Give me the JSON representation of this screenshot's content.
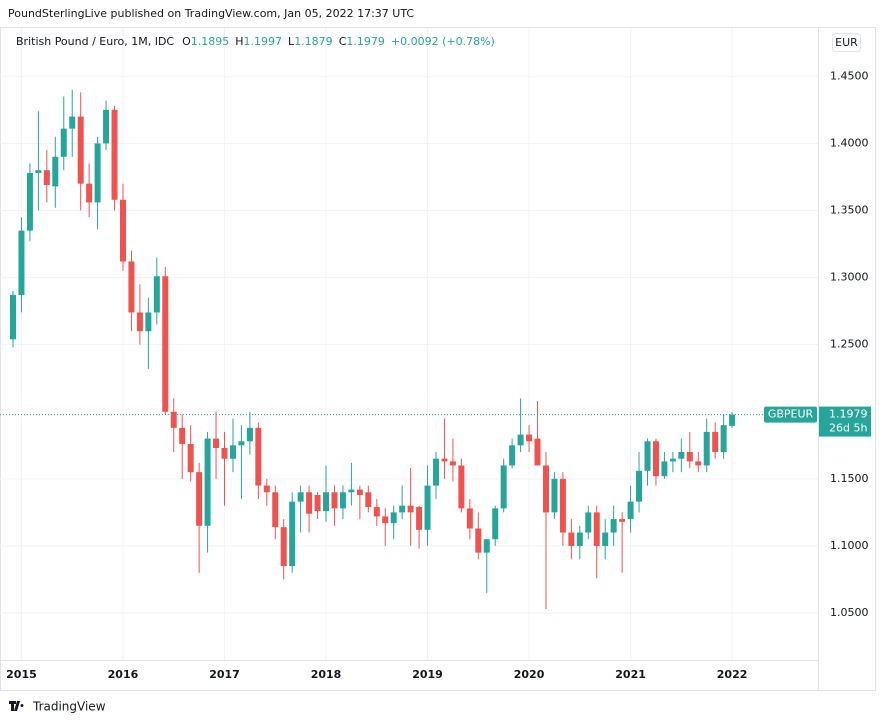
{
  "header": {
    "publisher": "PoundSterlingLive published on TradingView.com, Jan 05, 2022 17:37 UTC",
    "symbol_title": "British Pound / Euro, 1M, IDC",
    "ohlc": [
      {
        "label": "O",
        "value": "1.1895"
      },
      {
        "label": "H",
        "value": "1.1997"
      },
      {
        "label": "L",
        "value": "1.1879"
      },
      {
        "label": "C",
        "value": "1.1979"
      }
    ],
    "change": "+0.0092 (+0.78%)",
    "currency": "EUR",
    "brand": "TradingView"
  },
  "chart_data": {
    "type": "candlestick",
    "categories": [
      null,
      "2015",
      null,
      null,
      null,
      null,
      null,
      null,
      null,
      null,
      null,
      null,
      null,
      "2016",
      null,
      null,
      null,
      null,
      null,
      null,
      null,
      null,
      null,
      null,
      null,
      "2017",
      null,
      null,
      null,
      null,
      null,
      null,
      null,
      null,
      null,
      null,
      null,
      "2018",
      null,
      null,
      null,
      null,
      null,
      null,
      null,
      null,
      null,
      null,
      null,
      "2019",
      null,
      null,
      null,
      null,
      null,
      null,
      null,
      null,
      null,
      null,
      null,
      "2020",
      null,
      null,
      null,
      null,
      null,
      null,
      null,
      null,
      null,
      null,
      null,
      "2021",
      null,
      null,
      null,
      null,
      null,
      null,
      null,
      null,
      null,
      null,
      null,
      "2022"
    ],
    "open": [
      1.254,
      1.287,
      1.335,
      1.378,
      1.38,
      1.368,
      1.39,
      1.411,
      1.42,
      1.37,
      1.356,
      1.4,
      1.425,
      1.358,
      1.312,
      1.274,
      1.26,
      1.274,
      1.301,
      1.2,
      1.188,
      1.176,
      1.155,
      1.115,
      1.18,
      1.173,
      1.165,
      1.175,
      1.178,
      1.188,
      1.145,
      1.14,
      1.114,
      1.085,
      1.133,
      1.14,
      1.138,
      1.126,
      1.14,
      1.128,
      1.14,
      1.142,
      1.14,
      1.129,
      1.122,
      1.117,
      1.125,
      1.13,
      1.129,
      1.112,
      1.145,
      1.165,
      1.163,
      1.16,
      1.128,
      1.113,
      1.095,
      1.105,
      1.128,
      1.16,
      1.175,
      1.183,
      1.18,
      1.16,
      1.125,
      1.15,
      1.11,
      1.1,
      1.11,
      1.125,
      1.1,
      1.11,
      1.12,
      1.12,
      1.133,
      1.156,
      1.178,
      1.152,
      1.163,
      1.165,
      1.17,
      1.163,
      1.16,
      1.185,
      1.17,
      1.1895
    ],
    "high": [
      1.29,
      1.345,
      1.385,
      1.424,
      1.395,
      1.405,
      1.435,
      1.44,
      1.438,
      1.385,
      1.405,
      1.432,
      1.428,
      1.37,
      1.32,
      1.295,
      1.285,
      1.315,
      1.308,
      1.21,
      1.198,
      1.19,
      1.162,
      1.185,
      1.2,
      1.185,
      1.195,
      1.19,
      1.2,
      1.192,
      1.15,
      1.145,
      1.12,
      1.14,
      1.145,
      1.145,
      1.14,
      1.16,
      1.145,
      1.145,
      1.162,
      1.145,
      1.145,
      1.135,
      1.128,
      1.13,
      1.145,
      1.158,
      1.13,
      1.16,
      1.17,
      1.195,
      1.18,
      1.165,
      1.135,
      1.125,
      1.105,
      1.13,
      1.165,
      1.18,
      1.21,
      1.19,
      1.208,
      1.17,
      1.155,
      1.155,
      1.12,
      1.115,
      1.13,
      1.13,
      1.12,
      1.13,
      1.125,
      1.145,
      1.17,
      1.18,
      1.18,
      1.17,
      1.17,
      1.18,
      1.185,
      1.17,
      1.195,
      1.192,
      1.198,
      1.1997
    ],
    "low": [
      1.248,
      1.274,
      1.327,
      1.35,
      1.356,
      1.352,
      1.38,
      1.39,
      1.35,
      1.345,
      1.336,
      1.395,
      1.35,
      1.305,
      1.26,
      1.25,
      1.232,
      1.265,
      1.198,
      1.17,
      1.15,
      1.148,
      1.08,
      1.095,
      1.15,
      1.13,
      1.155,
      1.135,
      1.168,
      1.135,
      1.13,
      1.105,
      1.075,
      1.08,
      1.11,
      1.11,
      1.12,
      1.118,
      1.115,
      1.12,
      1.13,
      1.12,
      1.125,
      1.115,
      1.1,
      1.105,
      1.12,
      1.1,
      1.098,
      1.1,
      1.135,
      1.15,
      1.148,
      1.125,
      1.105,
      1.09,
      1.065,
      1.1,
      1.125,
      1.158,
      1.17,
      1.17,
      1.16,
      1.053,
      1.12,
      1.1,
      1.09,
      1.09,
      1.105,
      1.076,
      1.09,
      1.1,
      1.08,
      1.11,
      1.125,
      1.145,
      1.145,
      1.15,
      1.155,
      1.155,
      1.158,
      1.155,
      1.155,
      1.165,
      1.165,
      1.1879
    ],
    "close": [
      1.287,
      1.335,
      1.378,
      1.38,
      1.369,
      1.39,
      1.411,
      1.42,
      1.37,
      1.356,
      1.4,
      1.425,
      1.358,
      1.312,
      1.274,
      1.26,
      1.274,
      1.301,
      1.2,
      1.188,
      1.176,
      1.155,
      1.115,
      1.18,
      1.173,
      1.165,
      1.175,
      1.178,
      1.188,
      1.145,
      1.14,
      1.114,
      1.085,
      1.133,
      1.14,
      1.124,
      1.126,
      1.14,
      1.128,
      1.14,
      1.142,
      1.138,
      1.129,
      1.122,
      1.117,
      1.125,
      1.13,
      1.125,
      1.112,
      1.145,
      1.165,
      1.163,
      1.16,
      1.128,
      1.113,
      1.095,
      1.105,
      1.128,
      1.16,
      1.175,
      1.183,
      1.178,
      1.16,
      1.125,
      1.15,
      1.11,
      1.1,
      1.11,
      1.125,
      1.1,
      1.11,
      1.12,
      1.118,
      1.133,
      1.156,
      1.178,
      1.152,
      1.163,
      1.165,
      1.17,
      1.163,
      1.16,
      1.185,
      1.17,
      1.19,
      1.1979
    ],
    "up_color": "#26a69a",
    "down_color": "#ef5350",
    "ylim": [
      1.015,
      1.486
    ],
    "yticks": [
      {
        "value": 1.05,
        "label": "1.0500"
      },
      {
        "value": 1.1,
        "label": "1.1000"
      },
      {
        "value": 1.15,
        "label": "1.1500"
      },
      {
        "value": 1.2,
        "label": "1.2000"
      },
      {
        "value": 1.25,
        "label": "1.2500"
      },
      {
        "value": 1.3,
        "label": "1.3000"
      },
      {
        "value": 1.35,
        "label": "1.3500"
      },
      {
        "value": 1.4,
        "label": "1.4000"
      },
      {
        "value": 1.45,
        "label": "1.4500"
      }
    ],
    "grid": true,
    "last_price": {
      "value": 1.1979,
      "label": "1.1979"
    },
    "symbol": "GBPEUR",
    "countdown": "26d 5h"
  }
}
